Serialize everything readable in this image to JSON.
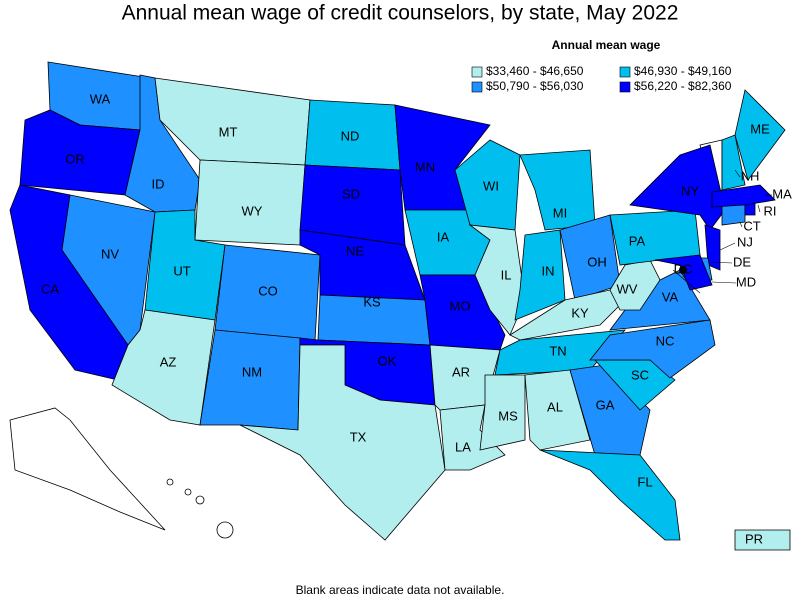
{
  "chart_data": {
    "type": "choropleth",
    "title": "Annual mean wage of credit counselors, by state, May 2022",
    "legend_title": "Annual mean wage",
    "classes": [
      {
        "label": "$33,460 - $46,650",
        "color": "#b2eeee"
      },
      {
        "label": "$46,930 - $49,160",
        "color": "#00bfef"
      },
      {
        "label": "$50,790 - $56,030",
        "color": "#1e90ff"
      },
      {
        "label": "$56,220 - $82,360",
        "color": "#0000ff"
      }
    ],
    "states": [
      {
        "name": "WA",
        "class": 2
      },
      {
        "name": "OR",
        "class": 3
      },
      {
        "name": "CA",
        "class": 3
      },
      {
        "name": "NV",
        "class": 2
      },
      {
        "name": "ID",
        "class": 2
      },
      {
        "name": "MT",
        "class": 0
      },
      {
        "name": "WY",
        "class": 0
      },
      {
        "name": "UT",
        "class": 1
      },
      {
        "name": "AZ",
        "class": 0
      },
      {
        "name": "CO",
        "class": 2
      },
      {
        "name": "NM",
        "class": 2
      },
      {
        "name": "ND",
        "class": 1
      },
      {
        "name": "SD",
        "class": 3
      },
      {
        "name": "NE",
        "class": 3
      },
      {
        "name": "KS",
        "class": 2
      },
      {
        "name": "OK",
        "class": 3
      },
      {
        "name": "TX",
        "class": 0
      },
      {
        "name": "MN",
        "class": 3
      },
      {
        "name": "IA",
        "class": 1
      },
      {
        "name": "MO",
        "class": 3
      },
      {
        "name": "AR",
        "class": 0
      },
      {
        "name": "LA",
        "class": 0
      },
      {
        "name": "WI",
        "class": 1
      },
      {
        "name": "IL",
        "class": 0
      },
      {
        "name": "MI",
        "class": 1
      },
      {
        "name": "IN",
        "class": 1
      },
      {
        "name": "OH",
        "class": 2
      },
      {
        "name": "KY",
        "class": 0
      },
      {
        "name": "TN",
        "class": 1
      },
      {
        "name": "MS",
        "class": 0
      },
      {
        "name": "AL",
        "class": 0
      },
      {
        "name": "GA",
        "class": 2
      },
      {
        "name": "FL",
        "class": 1
      },
      {
        "name": "SC",
        "class": 1
      },
      {
        "name": "NC",
        "class": 2
      },
      {
        "name": "VA",
        "class": 2
      },
      {
        "name": "WV",
        "class": 0
      },
      {
        "name": "PA",
        "class": 1
      },
      {
        "name": "NY",
        "class": 3
      },
      {
        "name": "NJ",
        "class": 3
      },
      {
        "name": "DE",
        "class": 2
      },
      {
        "name": "MD",
        "class": 3
      },
      {
        "name": "DC",
        "class": 3
      },
      {
        "name": "CT",
        "class": 2
      },
      {
        "name": "RI",
        "class": 3
      },
      {
        "name": "MA",
        "class": 3
      },
      {
        "name": "NH",
        "class": 1
      },
      {
        "name": "ME",
        "class": 1
      },
      {
        "name": "PR",
        "class": 0
      }
    ],
    "footnote": "Blank areas indicate data not available."
  }
}
